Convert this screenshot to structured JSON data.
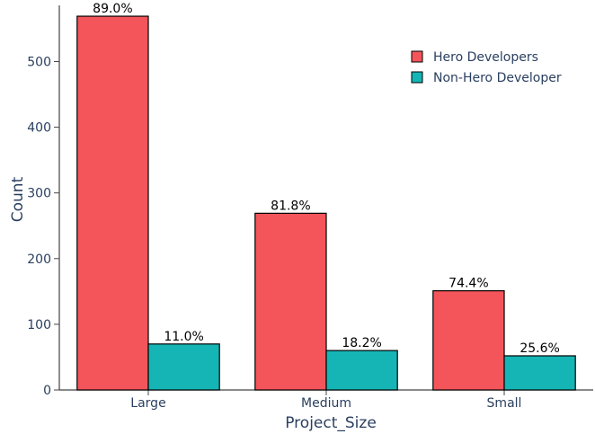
{
  "chart_data": {
    "type": "bar",
    "xlabel": "Project_Size",
    "ylabel": "Count",
    "categories": [
      "Large",
      "Medium",
      "Small"
    ],
    "ylim": [
      0,
      580
    ],
    "yticks": [
      0,
      100,
      200,
      300,
      400,
      500
    ],
    "grid": false,
    "legend_position": "top-right",
    "series": [
      {
        "name": "Hero Developers",
        "color": "#f4555a",
        "values": [
          569,
          269,
          151
        ],
        "labels": [
          "89.0%",
          "81.8%",
          "74.4%"
        ]
      },
      {
        "name": "Non-Hero Developer",
        "color": "#15b5b5",
        "values": [
          70,
          60,
          52
        ],
        "labels": [
          "11.0%",
          "18.2%",
          "25.6%"
        ]
      }
    ]
  }
}
